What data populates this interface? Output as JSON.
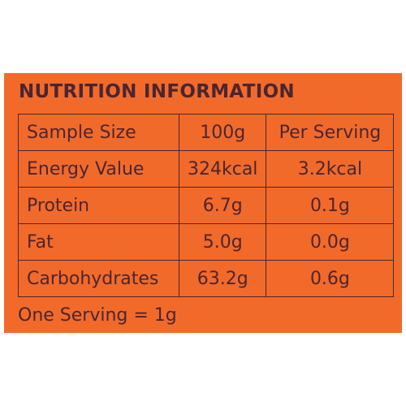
{
  "title": "NUTRITION INFORMATION",
  "table": {
    "header": [
      "Sample Size",
      "100g",
      "Per Serving"
    ],
    "rows": [
      [
        "Energy Value",
        "324kcal",
        "3.2kcal"
      ],
      [
        "Protein",
        "6.7g",
        "0.1g"
      ],
      [
        "Fat",
        "5.0g",
        "0.0g"
      ],
      [
        "Carbohydrates",
        "63.2g",
        "0.6g"
      ]
    ]
  },
  "footnote": "One Serving = 1g"
}
